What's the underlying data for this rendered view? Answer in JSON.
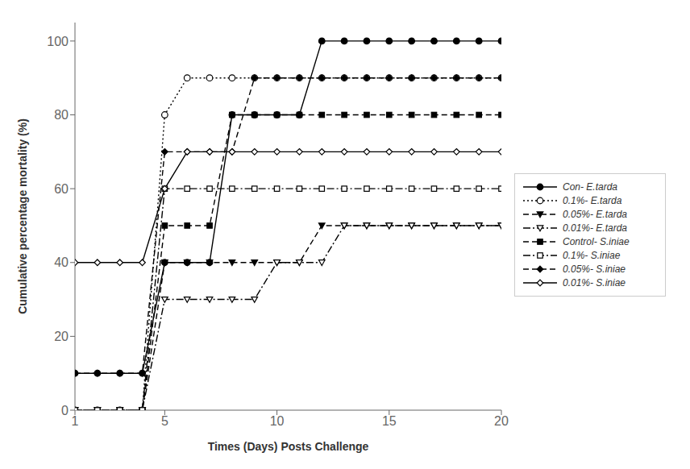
{
  "chart_data": {
    "type": "line",
    "xlabel": "Times (Days) Posts Challenge",
    "ylabel": "Cumulative percentage mortality (%)",
    "x": [
      1,
      2,
      3,
      4,
      5,
      6,
      7,
      8,
      9,
      10,
      11,
      12,
      13,
      14,
      15,
      16,
      17,
      18,
      19,
      20
    ],
    "series": [
      {
        "name": "Con- E.tarda",
        "color": "black",
        "line_style": "solid",
        "marker": "circle",
        "values": [
          10,
          10,
          10,
          10,
          40,
          40,
          40,
          80,
          80,
          80,
          80,
          100,
          100,
          100,
          100,
          100,
          100,
          100,
          100,
          100
        ]
      },
      {
        "name": "0.1%- E.tarda",
        "color": "black",
        "line_style": "dotted",
        "marker": "circle_open",
        "values": [
          0,
          0,
          0,
          0,
          80,
          90,
          90,
          90,
          90,
          90,
          90,
          90,
          90,
          90,
          90,
          90,
          90,
          90,
          90,
          90
        ]
      },
      {
        "name": "0.05%- E.tarda",
        "color": "black",
        "line_style": "dashed",
        "marker": "triangle_down",
        "values": [
          0,
          0,
          0,
          0,
          40,
          40,
          40,
          40,
          40,
          40,
          40,
          50,
          50,
          50,
          50,
          50,
          50,
          50,
          50,
          50
        ]
      },
      {
        "name": "0.01%- E.tarda",
        "color": "black",
        "line_style": "dashdot",
        "marker": "triangle_down_open",
        "values": [
          0,
          0,
          0,
          0,
          30,
          30,
          30,
          30,
          30,
          40,
          40,
          40,
          50,
          50,
          50,
          50,
          50,
          50,
          50,
          50
        ]
      },
      {
        "name": "Control- S.iniae",
        "color": "black",
        "line_style": "dashed",
        "marker": "square",
        "values": [
          0,
          0,
          0,
          0,
          50,
          50,
          50,
          80,
          80,
          80,
          80,
          80,
          80,
          80,
          80,
          80,
          80,
          80,
          80,
          80
        ]
      },
      {
        "name": "0.1%- S.iniae",
        "color": "black",
        "line_style": "dashdot",
        "marker": "square_open",
        "values": [
          0,
          0,
          0,
          0,
          60,
          60,
          60,
          60,
          60,
          60,
          60,
          60,
          60,
          60,
          60,
          60,
          60,
          60,
          60,
          60
        ]
      },
      {
        "name": "0.05%- S.iniae",
        "color": "black",
        "line_style": "dashed",
        "marker": "diamond",
        "values": [
          10,
          10,
          10,
          10,
          70,
          70,
          70,
          70,
          90,
          90,
          90,
          90,
          90,
          90,
          90,
          90,
          90,
          90,
          90,
          90
        ]
      },
      {
        "name": "0.01%- S.iniae",
        "color": "black",
        "line_style": "solid",
        "marker": "diamond_open",
        "values": [
          40,
          40,
          40,
          40,
          60,
          70,
          70,
          70,
          70,
          70,
          70,
          70,
          70,
          70,
          70,
          70,
          70,
          70,
          70,
          70
        ]
      }
    ],
    "xlim": [
      1,
      20
    ],
    "ylim": [
      0,
      105
    ],
    "xticks": [
      1,
      5,
      10,
      15,
      20
    ],
    "yticks": [
      0,
      20,
      40,
      60,
      80,
      100
    ],
    "grid": false,
    "legend": "right"
  }
}
